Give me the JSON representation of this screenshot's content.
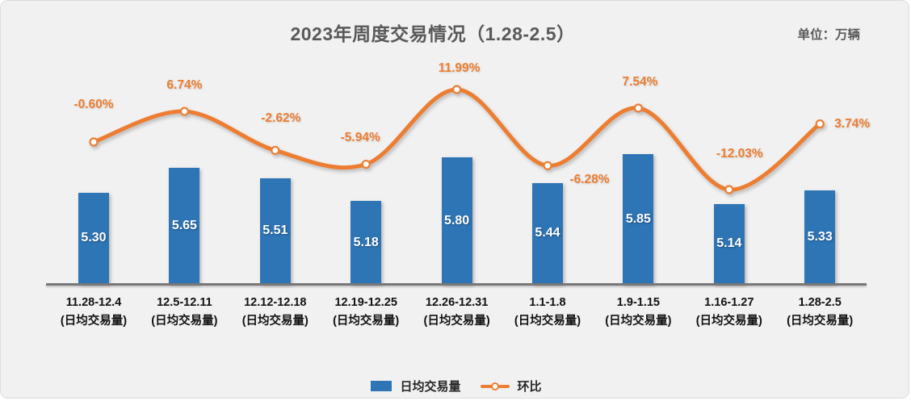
{
  "title": "2023年周度交易情况（1.28-2.5）",
  "unit_label": "单位：万辆",
  "legend": {
    "bar_label": "日均交易量",
    "line_label": "环比"
  },
  "colors": {
    "bar": "#2E75B6",
    "line": "#ED7D31",
    "background": "#F1F1F1",
    "axis": "#777777",
    "title_text": "#595959",
    "bar_value_text": "#FFFFFF",
    "category_text": "#111111"
  },
  "chart_data": {
    "type": "bar",
    "combo": "bar+line",
    "categories": [
      "11.28-12.4",
      "12.5-12.11",
      "12.12-12.18",
      "12.19-12.25",
      "12.26-12.31",
      "1.1-1.8",
      "1.9-1.15",
      "1.16-1.27",
      "1.28-2.5"
    ],
    "category_sublabel": "(日均交易量)",
    "series": [
      {
        "name": "日均交易量",
        "type": "bar",
        "values": [
          5.3,
          5.65,
          5.51,
          5.18,
          5.8,
          5.44,
          5.85,
          5.14,
          5.33
        ],
        "value_labels": [
          "5.30",
          "5.65",
          "5.51",
          "5.18",
          "5.80",
          "5.44",
          "5.85",
          "5.14",
          "5.33"
        ]
      },
      {
        "name": "环比",
        "type": "line",
        "values": [
          -0.6,
          6.74,
          -2.62,
          -5.94,
          11.99,
          -6.28,
          7.54,
          -12.03,
          3.74
        ],
        "value_labels": [
          "-0.60%",
          "6.74%",
          "-2.62%",
          "-5.94%",
          "11.99%",
          "-6.28%",
          "7.54%",
          "-12.03%",
          "3.74%"
        ]
      }
    ],
    "ylabel": "",
    "xlabel": "",
    "grid": false,
    "legend_position": "bottom-center",
    "bar_axis_implied_min": 4.0,
    "line_value_range_shown": [
      -12.03,
      11.99
    ]
  }
}
